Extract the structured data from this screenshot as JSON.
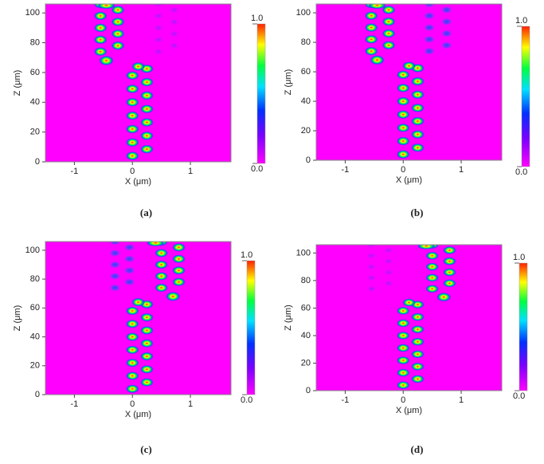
{
  "chart_data": [
    {
      "type": "heatmap",
      "caption": "(a)",
      "xlabel": "X (μm)",
      "ylabel": "Z (μm)",
      "xlim": [
        -1.5,
        1.7
      ],
      "ylim": [
        0,
        106
      ],
      "xticks": [
        -1,
        0,
        1
      ],
      "yticks": [
        0,
        20,
        40,
        60,
        80,
        100
      ],
      "clim": [
        0,
        1
      ],
      "cticks": [
        {
          "value": 0,
          "label": "0.0"
        },
        {
          "value": 1,
          "label": "1.0"
        }
      ]
    },
    {
      "type": "heatmap",
      "caption": "(b)",
      "xlabel": "X (μm)",
      "ylabel": "Z (μm)",
      "xlim": [
        -1.5,
        1.7
      ],
      "ylim": [
        0,
        106
      ],
      "xticks": [
        -1,
        0,
        1
      ],
      "yticks": [
        0,
        20,
        40,
        60,
        80,
        100
      ],
      "clim": [
        0,
        1
      ],
      "cticks": [
        {
          "value": 0,
          "label": "0.0"
        },
        {
          "value": 1,
          "label": "1.0"
        }
      ]
    },
    {
      "type": "heatmap",
      "caption": "(c)",
      "xlabel": "X (μm)",
      "ylabel": "Z (μm)",
      "xlim": [
        -1.5,
        1.7
      ],
      "ylim": [
        0,
        106
      ],
      "xticks": [
        -1,
        0,
        1
      ],
      "yticks": [
        0,
        20,
        40,
        60,
        80,
        100
      ],
      "clim": [
        0,
        1
      ],
      "cticks": [
        {
          "value": 0,
          "label": "0.0"
        },
        {
          "value": 1,
          "label": "1.0"
        }
      ]
    },
    {
      "type": "heatmap",
      "caption": "(d)",
      "xlabel": "X (μm)",
      "ylabel": "Z (μm)",
      "xlim": [
        -1.5,
        1.7
      ],
      "ylim": [
        0,
        106
      ],
      "xticks": [
        -1,
        0,
        1
      ],
      "yticks": [
        0,
        20,
        40,
        60,
        80,
        100
      ],
      "clim": [
        0,
        1
      ],
      "cticks": [
        {
          "value": 0,
          "label": "0.0"
        },
        {
          "value": 1,
          "label": "1.0"
        }
      ]
    }
  ]
}
